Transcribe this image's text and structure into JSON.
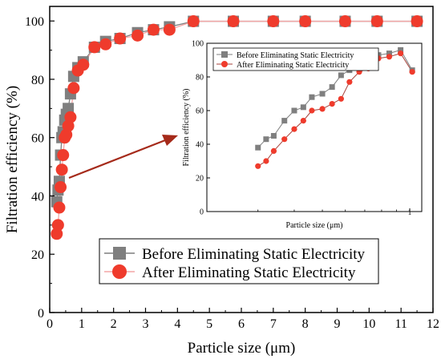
{
  "colors": {
    "before": "#7f7f7f",
    "after": "#ef3b2c",
    "after_line": "#f4a6a6",
    "arrow": "#a52a1a",
    "axis": "#000000"
  },
  "chart_data": [
    {
      "type": "line",
      "xlabel": "Particle size (μm)",
      "ylabel": "Filtration efficiency (%)",
      "xlim": [
        0,
        12
      ],
      "ylim": [
        0,
        105
      ],
      "xticks": [
        0,
        1,
        2,
        3,
        4,
        5,
        6,
        7,
        8,
        9,
        10,
        11,
        12
      ],
      "yticks": [
        0,
        20,
        40,
        60,
        80,
        100
      ],
      "grid": false,
      "legend": "bottom-center",
      "series": [
        {
          "name": "Before Eliminating Static Electricity",
          "marker": "square",
          "x": [
            0.22,
            0.26,
            0.3,
            0.34,
            0.38,
            0.42,
            0.47,
            0.52,
            0.58,
            0.65,
            0.75,
            0.88,
            1.05,
            1.4,
            1.75,
            2.2,
            2.75,
            3.25,
            3.75,
            4.5,
            5.75,
            7.0,
            8.0,
            9.25,
            10.25,
            11.5
          ],
          "y": [
            38,
            42,
            45,
            54,
            60,
            62,
            66,
            68,
            70,
            75,
            81,
            84,
            86,
            91,
            93,
            94,
            96,
            97,
            98,
            99.9,
            99.9,
            99.9,
            99.9,
            99.9,
            99.9,
            99.9
          ]
        },
        {
          "name": "After Eliminating Static Electricity",
          "marker": "circle",
          "x": [
            0.22,
            0.26,
            0.3,
            0.34,
            0.38,
            0.42,
            0.47,
            0.52,
            0.58,
            0.65,
            0.75,
            0.88,
            1.05,
            1.4,
            1.75,
            2.2,
            2.75,
            3.25,
            3.75,
            4.5,
            5.75,
            7.0,
            8.0,
            9.25,
            10.25,
            11.5
          ],
          "y": [
            27,
            30,
            36,
            43,
            49,
            54,
            60,
            61,
            64,
            67,
            77,
            83,
            85,
            91,
            92,
            94,
            95,
            97,
            97,
            99.9,
            99.9,
            99.9,
            99.9,
            99.9,
            99.9,
            99.9
          ]
        }
      ]
    },
    {
      "type": "line",
      "xlabel": "Particle size (μm)",
      "ylabel": "Filtration efficiency (%)",
      "xscale": "log",
      "xlim": [
        0.2,
        1.1
      ],
      "ylim": [
        0,
        100
      ],
      "xticks": [
        1
      ],
      "yticks": [
        0,
        20,
        40,
        60,
        80,
        100
      ],
      "grid": false,
      "legend": "top-left",
      "series": [
        {
          "name": "Before Eliminating Static Electricity",
          "marker": "square",
          "x": [
            0.3,
            0.32,
            0.34,
            0.37,
            0.4,
            0.43,
            0.46,
            0.5,
            0.54,
            0.58,
            0.62,
            0.67,
            0.72,
            0.78,
            0.85,
            0.93,
            1.02
          ],
          "y": [
            38,
            43,
            45,
            54,
            60,
            62,
            68,
            70,
            74,
            81,
            84,
            86,
            91,
            93,
            94,
            96,
            84
          ]
        },
        {
          "name": "After Eliminating Static Electricity",
          "marker": "circle",
          "x": [
            0.3,
            0.32,
            0.34,
            0.37,
            0.4,
            0.43,
            0.46,
            0.5,
            0.54,
            0.58,
            0.62,
            0.67,
            0.72,
            0.78,
            0.85,
            0.93,
            1.02
          ],
          "y": [
            27,
            30,
            36,
            43,
            49,
            54,
            60,
            61,
            64,
            67,
            77,
            83,
            85,
            91,
            92,
            94,
            83
          ]
        }
      ]
    }
  ]
}
